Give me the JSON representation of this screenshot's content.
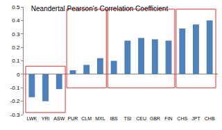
{
  "chart_data": {
    "type": "bar",
    "title": "Neandertal Pearson's Correlation Coefficient",
    "categories": [
      "LWK",
      "YRI",
      "ASW",
      "PUR",
      "CLM",
      "MXL",
      "IBS",
      "TSI",
      "CEU",
      "GBR",
      "FIN",
      "CHS",
      "JPT",
      "CHB"
    ],
    "values": [
      -0.17,
      -0.2,
      -0.11,
      0.03,
      0.07,
      0.12,
      0.1,
      0.25,
      0.27,
      0.26,
      0.25,
      0.34,
      0.37,
      0.4
    ],
    "color": "#4f81bd",
    "ylim": [
      -0.3,
      0.5
    ],
    "yticks": [
      -0.3,
      -0.2,
      -0.1,
      0,
      0.1,
      0.2,
      0.3,
      0.4,
      0.5
    ],
    "grid": false
  }
}
